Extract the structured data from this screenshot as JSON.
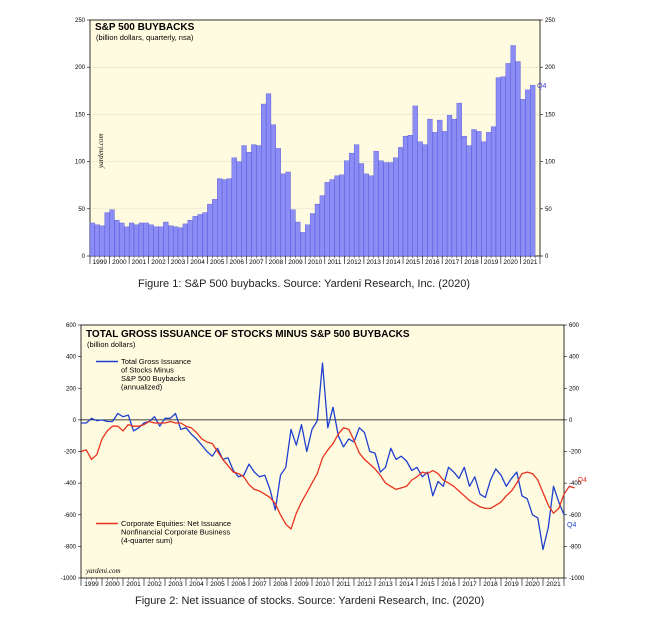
{
  "chart_data": [
    {
      "type": "bar",
      "title": "S&P 500 BUYBACKS",
      "subtitle": "(billion dollars, quarterly, nsa)",
      "watermark": "yardeni.com",
      "end_label": "Q4",
      "bar_color": "#8c8cf5",
      "bar_edge_color": "#3a3ad0",
      "background": "#fffbe0",
      "ylim": [
        0,
        250
      ],
      "yticks": [
        0,
        50,
        100,
        150,
        200,
        250
      ],
      "xlim": [
        1998.5,
        2021.5
      ],
      "year_labels": [
        "1999",
        "2000",
        "2001",
        "2002",
        "2003",
        "2004",
        "2005",
        "2006",
        "2007",
        "2008",
        "2009",
        "2010",
        "2011",
        "2012",
        "2013",
        "2014",
        "2015",
        "2016",
        "2017",
        "2018",
        "2019",
        "2020",
        "2021"
      ],
      "x_start": 1998.5,
      "x_step": 0.25,
      "values": [
        35,
        33,
        32,
        46,
        49,
        38,
        35,
        31,
        35,
        33,
        35,
        35,
        33,
        31,
        31,
        36,
        32,
        31,
        30,
        34,
        38,
        42,
        44,
        46,
        55,
        60,
        82,
        81,
        82,
        104,
        100,
        117,
        110,
        118,
        117,
        161,
        172,
        139,
        114,
        87,
        89,
        49,
        36,
        25,
        33,
        45,
        55,
        64,
        78,
        81,
        85,
        86,
        101,
        109,
        118,
        98,
        87,
        85,
        111,
        101,
        99,
        99,
        104,
        115,
        127,
        128,
        159,
        121,
        118,
        145,
        131,
        144,
        132,
        149,
        145,
        162,
        127,
        117,
        134,
        132,
        121,
        131,
        137,
        189,
        190,
        204,
        223,
        206,
        166,
        176,
        181
      ]
    },
    {
      "type": "line",
      "title": "TOTAL GROSS ISSUANCE OF STOCKS MINUS S&P 500 BUYBACKS",
      "subtitle": "(billion dollars)",
      "watermark": "yardeni.com",
      "background": "#fffbe0",
      "ylim": [
        -1000,
        600
      ],
      "yticks": [
        -1000,
        -800,
        -600,
        -400,
        -200,
        0,
        200,
        400,
        600
      ],
      "xlim": [
        1998.5,
        2021.5
      ],
      "year_labels": [
        "1999",
        "2000",
        "2001",
        "2002",
        "2003",
        "2004",
        "2005",
        "2006",
        "2007",
        "2008",
        "2009",
        "2010",
        "2011",
        "2012",
        "2013",
        "2014",
        "2015",
        "2016",
        "2017",
        "2018",
        "2019",
        "2020",
        "2021"
      ],
      "series": [
        {
          "name": "Total Gross Issuance of Stocks Minus S&P 500 Buybacks (annualized)",
          "legend_lines": [
            "Total Gross Issuance",
            "of Stocks Minus",
            "S&P 500 Buybacks",
            "(annualized)"
          ],
          "color": "#1f3fd0",
          "end_label": "Q4",
          "x_start": 1998.5,
          "x_step": 0.25,
          "values": [
            -20,
            -20,
            10,
            -5,
            0,
            -10,
            -10,
            40,
            20,
            30,
            -70,
            -50,
            -20,
            -10,
            20,
            -40,
            10,
            10,
            40,
            -60,
            -50,
            -90,
            -120,
            -160,
            -200,
            -230,
            -180,
            -250,
            -240,
            -320,
            -360,
            -350,
            -280,
            -330,
            -360,
            -350,
            -440,
            -570,
            -350,
            -300,
            -60,
            -160,
            -30,
            -200,
            -60,
            -5,
            360,
            -50,
            80,
            -100,
            -170,
            -120,
            -140,
            -50,
            -80,
            -200,
            -210,
            -330,
            -300,
            -180,
            -250,
            -230,
            -260,
            -320,
            -300,
            -360,
            -330,
            -480,
            -390,
            -420,
            -300,
            -330,
            -370,
            -300,
            -420,
            -360,
            -470,
            -490,
            -380,
            -310,
            -350,
            -420,
            -370,
            -330,
            -480,
            -500,
            -600,
            -620,
            -820,
            -680,
            -420,
            -520,
            -600
          ]
        },
        {
          "name": "Corporate Equities: Net Issuance Nonfinancial Corporate Business (4-quarter sum)",
          "legend_lines": [
            "Corporate Equities: Net Issuance",
            "Nonfinancial Corporate Business",
            "(4-quarter sum)"
          ],
          "color": "#e8321e",
          "end_label": "Q4",
          "x_start": 1998.5,
          "x_step": 0.25,
          "values": [
            -200,
            -190,
            -250,
            -220,
            -120,
            -70,
            -40,
            -40,
            -70,
            -30,
            -40,
            -40,
            -30,
            -10,
            -20,
            -20,
            -20,
            -10,
            -20,
            -20,
            -40,
            -50,
            -80,
            -120,
            -140,
            -150,
            -200,
            -250,
            -290,
            -330,
            -340,
            -360,
            -410,
            -440,
            -450,
            -470,
            -490,
            -530,
            -600,
            -660,
            -690,
            -590,
            -520,
            -460,
            -400,
            -340,
            -240,
            -190,
            -150,
            -90,
            -50,
            -60,
            -130,
            -210,
            -250,
            -280,
            -310,
            -350,
            -400,
            -420,
            -440,
            -430,
            -420,
            -380,
            -360,
            -330,
            -340,
            -320,
            -340,
            -380,
            -400,
            -420,
            -450,
            -480,
            -510,
            -530,
            -550,
            -560,
            -560,
            -540,
            -520,
            -480,
            -450,
            -400,
            -340,
            -330,
            -340,
            -380,
            -460,
            -540,
            -590,
            -560,
            -470,
            -420,
            -430
          ]
        }
      ]
    }
  ],
  "captions": {
    "figure1": "Figure 1: S&P 500 buybacks. Source: Yardeni Research, Inc. (2020)",
    "figure2": "Figure 2: Net issuance of stocks. Source: Yardeni Research, Inc. (2020)"
  }
}
